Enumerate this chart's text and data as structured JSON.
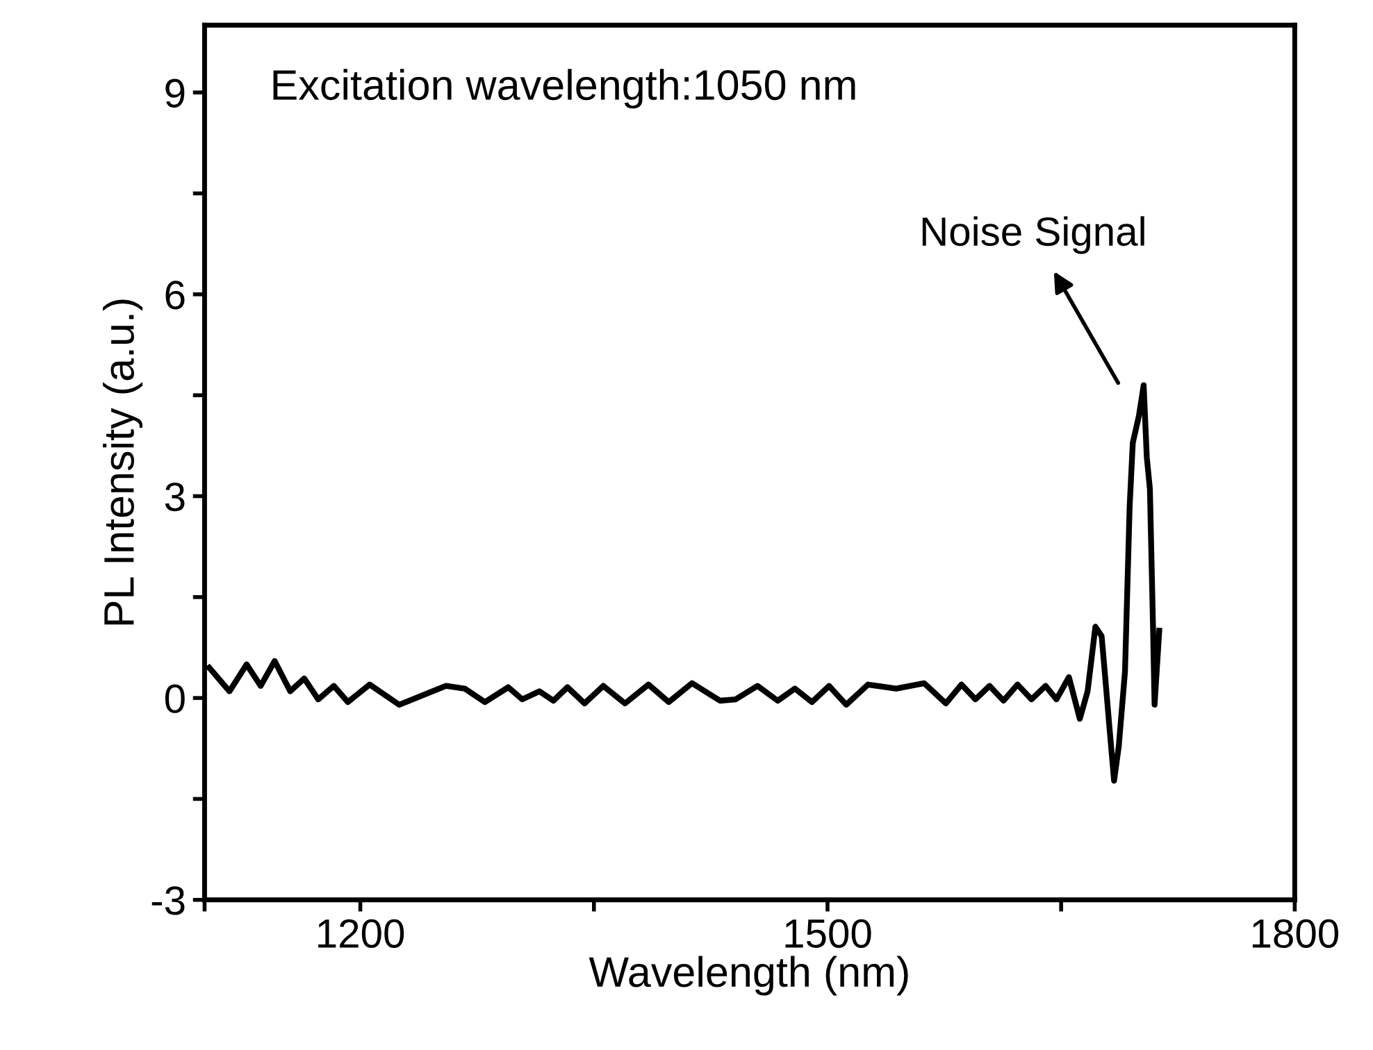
{
  "chart_data": {
    "type": "line",
    "xlabel": "Wavelength (nm)",
    "ylabel": "PL Intensity (a.u.)",
    "x": [
      1103,
      1116,
      1127,
      1136,
      1145,
      1155,
      1164,
      1173,
      1183,
      1192,
      1206,
      1225,
      1255,
      1267,
      1280,
      1295,
      1304,
      1315,
      1324,
      1333,
      1344,
      1356,
      1370,
      1385,
      1398,
      1413,
      1431,
      1441,
      1455,
      1468,
      1479,
      1490,
      1501,
      1512,
      1526,
      1544,
      1562,
      1576,
      1586,
      1595,
      1604,
      1613,
      1622,
      1631,
      1640,
      1647,
      1655,
      1662,
      1667,
      1672,
      1676,
      1678,
      1681,
      1684,
      1687,
      1691,
      1694,
      1696,
      1700,
      1703,
      1705,
      1707,
      1709,
      1710,
      1713
    ],
    "series": [
      {
        "color": "#000000",
        "values": [
          0.45,
          0.1,
          0.5,
          0.18,
          0.55,
          0.1,
          0.29,
          -0.02,
          0.18,
          -0.06,
          0.2,
          -0.1,
          0.18,
          0.14,
          -0.06,
          0.16,
          -0.02,
          0.1,
          -0.04,
          0.16,
          -0.08,
          0.18,
          -0.08,
          0.2,
          -0.06,
          0.22,
          -0.04,
          -0.02,
          0.18,
          -0.04,
          0.14,
          -0.06,
          0.18,
          -0.1,
          0.2,
          0.14,
          0.22,
          -0.08,
          0.2,
          -0.02,
          0.18,
          -0.04,
          0.2,
          -0.02,
          0.18,
          -0.02,
          0.31,
          -0.31,
          0.1,
          1.06,
          0.92,
          0.39,
          -0.43,
          -1.23,
          -0.72,
          0.39,
          2.85,
          3.79,
          4.2,
          4.65,
          3.58,
          3.11,
          1.06,
          -0.1,
          1.0
        ]
      }
    ],
    "xlim": [
      1100,
      1800
    ],
    "xticks": [
      {
        "value": 1100,
        "label": null
      },
      1200,
      {
        "value": 1350,
        "label": null
      },
      1500,
      {
        "value": 1650,
        "label": null
      },
      1800
    ],
    "ylim": [
      -3,
      10
    ],
    "yticks": [
      -3,
      {
        "value": -1.5,
        "label": null
      },
      0,
      {
        "value": 1.5,
        "label": null
      },
      3,
      {
        "value": 4.5,
        "label": null
      },
      6,
      {
        "value": 7.5,
        "label": null
      },
      9
    ],
    "annotations": [
      "Excitation wavelength:1050 nm",
      "Noise Signal"
    ],
    "grid": false,
    "legend": false,
    "marker": "none",
    "line_style": "solid"
  }
}
